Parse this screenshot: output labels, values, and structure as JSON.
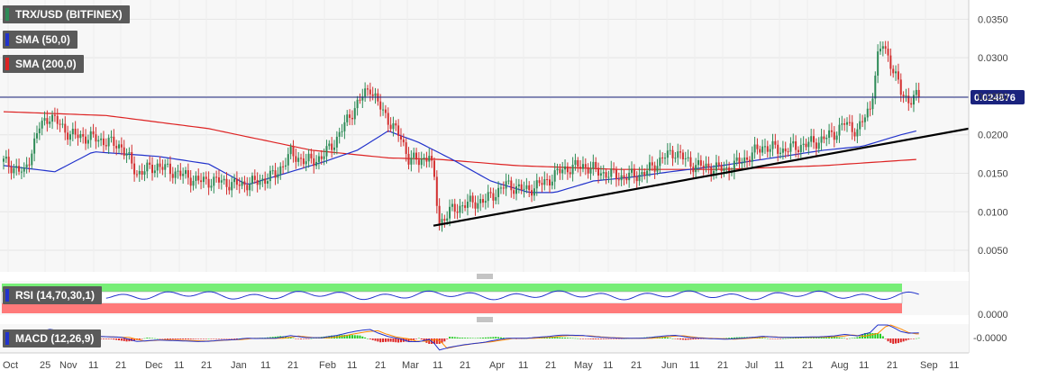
{
  "chart_data": {
    "type": "candlestick",
    "symbol_label": "TRX/USD (BITFINEX)",
    "price_axis": {
      "ticks": [
        "0.0350",
        "0.0300",
        "0.0250",
        "0.0200",
        "0.0150",
        "0.0100",
        "0.0050"
      ],
      "ylim": [
        0.0022,
        0.0375
      ],
      "current_price": 0.024876,
      "current_price_label": "0.024876"
    },
    "x_axis": {
      "labels": [
        "Oct",
        "25",
        "Nov",
        "11",
        "21",
        "Dec",
        "11",
        "21",
        "Jan",
        "11",
        "21",
        "Feb",
        "11",
        "21",
        "Mar",
        "11",
        "21",
        "Apr",
        "11",
        "21",
        "May",
        "11",
        "21",
        "Jun",
        "11",
        "21",
        "Jul",
        "11",
        "21",
        "Aug",
        "11",
        "21",
        "Sep",
        "11"
      ]
    },
    "indicators": {
      "sma_fast": {
        "label": "SMA (50,0)",
        "color": "#2233cc"
      },
      "sma_slow": {
        "label": "SMA (200,0)",
        "color": "#dd2222"
      },
      "rsi": {
        "label": "RSI (14,70,30,1)",
        "axis_label": "0.0000"
      },
      "macd": {
        "label": "MACD (12,26,9)",
        "axis_label": "-0.0000"
      }
    },
    "colors": {
      "up": "#2e8b57",
      "down": "#d32f2f",
      "trendline": "#000000",
      "price_line": "#1a237e"
    },
    "trendline": {
      "from": {
        "date": "Mar 11",
        "price": 0.0082
      },
      "to": {
        "date": "Sep 11",
        "price": 0.0208
      }
    },
    "series": [
      {
        "name": "price",
        "anchors": [
          [
            0,
            0.0165
          ],
          [
            8,
            0.015
          ],
          [
            14,
            0.021
          ],
          [
            18,
            0.0225
          ],
          [
            26,
            0.02
          ],
          [
            36,
            0.0195
          ],
          [
            46,
            0.0185
          ],
          [
            52,
            0.015
          ],
          [
            60,
            0.016
          ],
          [
            68,
            0.015
          ],
          [
            76,
            0.014
          ],
          [
            84,
            0.014
          ],
          [
            90,
            0.0135
          ],
          [
            98,
            0.0138
          ],
          [
            106,
            0.0148
          ],
          [
            112,
            0.0175
          ],
          [
            118,
            0.0165
          ],
          [
            124,
            0.017
          ],
          [
            130,
            0.0195
          ],
          [
            135,
            0.0225
          ],
          [
            140,
            0.025
          ],
          [
            143,
            0.0262
          ],
          [
            146,
            0.024
          ],
          [
            150,
            0.022
          ],
          [
            155,
            0.0195
          ],
          [
            158,
            0.017
          ],
          [
            162,
            0.0165
          ],
          [
            166,
            0.0175
          ],
          [
            168,
            0.014
          ],
          [
            170,
            0.0085
          ],
          [
            174,
            0.01
          ],
          [
            180,
            0.011
          ],
          [
            188,
            0.0115
          ],
          [
            196,
            0.0135
          ],
          [
            204,
            0.0128
          ],
          [
            212,
            0.014
          ],
          [
            218,
            0.0155
          ],
          [
            226,
            0.016
          ],
          [
            234,
            0.015
          ],
          [
            242,
            0.0145
          ],
          [
            250,
            0.015
          ],
          [
            258,
            0.0172
          ],
          [
            262,
            0.0178
          ],
          [
            268,
            0.0162
          ],
          [
            274,
            0.0158
          ],
          [
            282,
            0.0155
          ],
          [
            290,
            0.017
          ],
          [
            296,
            0.0185
          ],
          [
            304,
            0.018
          ],
          [
            310,
            0.0185
          ],
          [
            318,
            0.0192
          ],
          [
            324,
            0.0202
          ],
          [
            328,
            0.0215
          ],
          [
            333,
            0.0205
          ],
          [
            338,
            0.0235
          ],
          [
            341,
            0.03
          ],
          [
            343,
            0.0318
          ],
          [
            347,
            0.0285
          ],
          [
            350,
            0.0255
          ],
          [
            353,
            0.0245
          ],
          [
            357,
            0.025
          ]
        ]
      },
      {
        "name": "sma_fast",
        "anchors": [
          [
            0,
            0.016
          ],
          [
            20,
            0.0152
          ],
          [
            35,
            0.0178
          ],
          [
            60,
            0.0172
          ],
          [
            80,
            0.0162
          ],
          [
            95,
            0.0135
          ],
          [
            110,
            0.015
          ],
          [
            125,
            0.0165
          ],
          [
            138,
            0.018
          ],
          [
            150,
            0.0205
          ],
          [
            162,
            0.019
          ],
          [
            175,
            0.0168
          ],
          [
            190,
            0.014
          ],
          [
            205,
            0.0125
          ],
          [
            215,
            0.0125
          ],
          [
            230,
            0.014
          ],
          [
            245,
            0.0145
          ],
          [
            260,
            0.0152
          ],
          [
            280,
            0.016
          ],
          [
            300,
            0.017
          ],
          [
            320,
            0.018
          ],
          [
            335,
            0.0185
          ],
          [
            350,
            0.02
          ],
          [
            356,
            0.0205
          ]
        ]
      },
      {
        "name": "sma_slow",
        "anchors": [
          [
            0,
            0.023
          ],
          [
            40,
            0.0225
          ],
          [
            80,
            0.0208
          ],
          [
            120,
            0.018
          ],
          [
            150,
            0.017
          ],
          [
            170,
            0.0168
          ],
          [
            200,
            0.016
          ],
          [
            240,
            0.0155
          ],
          [
            280,
            0.0155
          ],
          [
            320,
            0.016
          ],
          [
            356,
            0.0168
          ]
        ]
      }
    ]
  }
}
